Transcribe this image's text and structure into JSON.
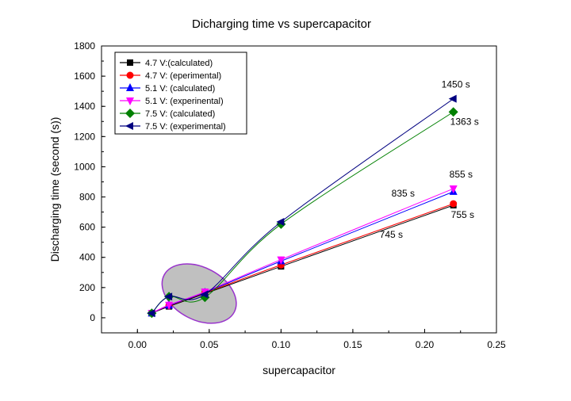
{
  "chart_data": {
    "type": "line",
    "title": "Dicharging time vs supercapacitor",
    "xlabel": "supercapacitor",
    "ylabel": "Discharging time (second (s))",
    "xlim": [
      -0.025,
      0.25
    ],
    "ylim": [
      -100,
      1800
    ],
    "xticks": [
      "0.00",
      "0.05",
      "0.10",
      "0.15",
      "0.20",
      "0.25"
    ],
    "xtick_values": [
      0,
      0.05,
      0.1,
      0.15,
      0.2,
      0.25
    ],
    "yticks": [
      "0",
      "200",
      "400",
      "600",
      "800",
      "1000",
      "1200",
      "1400",
      "1600",
      "1800"
    ],
    "ytick_values": [
      0,
      200,
      400,
      600,
      800,
      1000,
      1200,
      1400,
      1600,
      1800
    ],
    "grid": false,
    "legend_position": "top-left",
    "x": [
      0.01,
      0.022,
      0.047,
      0.1,
      0.22
    ],
    "series": [
      {
        "name": "4.7 V:(calculated)",
        "color": "#000000",
        "marker": "square",
        "values": [
          30,
          75,
          160,
          340,
          745
        ]
      },
      {
        "name": "4.7 V: (eperimental)",
        "color": "#ff0000",
        "marker": "circle",
        "values": [
          30,
          80,
          165,
          350,
          755
        ]
      },
      {
        "name": "5.1 V: (calculated)",
        "color": "#0000ff",
        "marker": "triangle-up",
        "values": [
          30,
          82,
          168,
          375,
          835
        ]
      },
      {
        "name": "5.1 V: (experinental)",
        "color": "#ff00ff",
        "marker": "triangle-down",
        "values": [
          30,
          85,
          172,
          385,
          855
        ]
      },
      {
        "name": "7.5 V: (calculated)",
        "color": "#008000",
        "marker": "diamond",
        "values": [
          30,
          140,
          135,
          620,
          1363
        ]
      },
      {
        "name": "7.5 V: (experimental)",
        "color": "#000080",
        "marker": "triangle-left",
        "values": [
          30,
          140,
          155,
          635,
          1450
        ]
      }
    ],
    "annotations": [
      {
        "text": "1450 s",
        "x": 0.22,
        "y": 1450
      },
      {
        "text": "1363 s",
        "x": 0.22,
        "y": 1363
      },
      {
        "text": "855 s",
        "x": 0.22,
        "y": 855
      },
      {
        "text": "835 s",
        "x": 0.22,
        "y": 835
      },
      {
        "text": "755 s",
        "x": 0.22,
        "y": 755
      },
      {
        "text": "745 s",
        "x": 0.22,
        "y": 745
      }
    ],
    "highlight_ellipse": {
      "center_x": 0.043,
      "center_y": 160,
      "fill": "#c0c0c0",
      "stroke": "#9933cc"
    }
  }
}
